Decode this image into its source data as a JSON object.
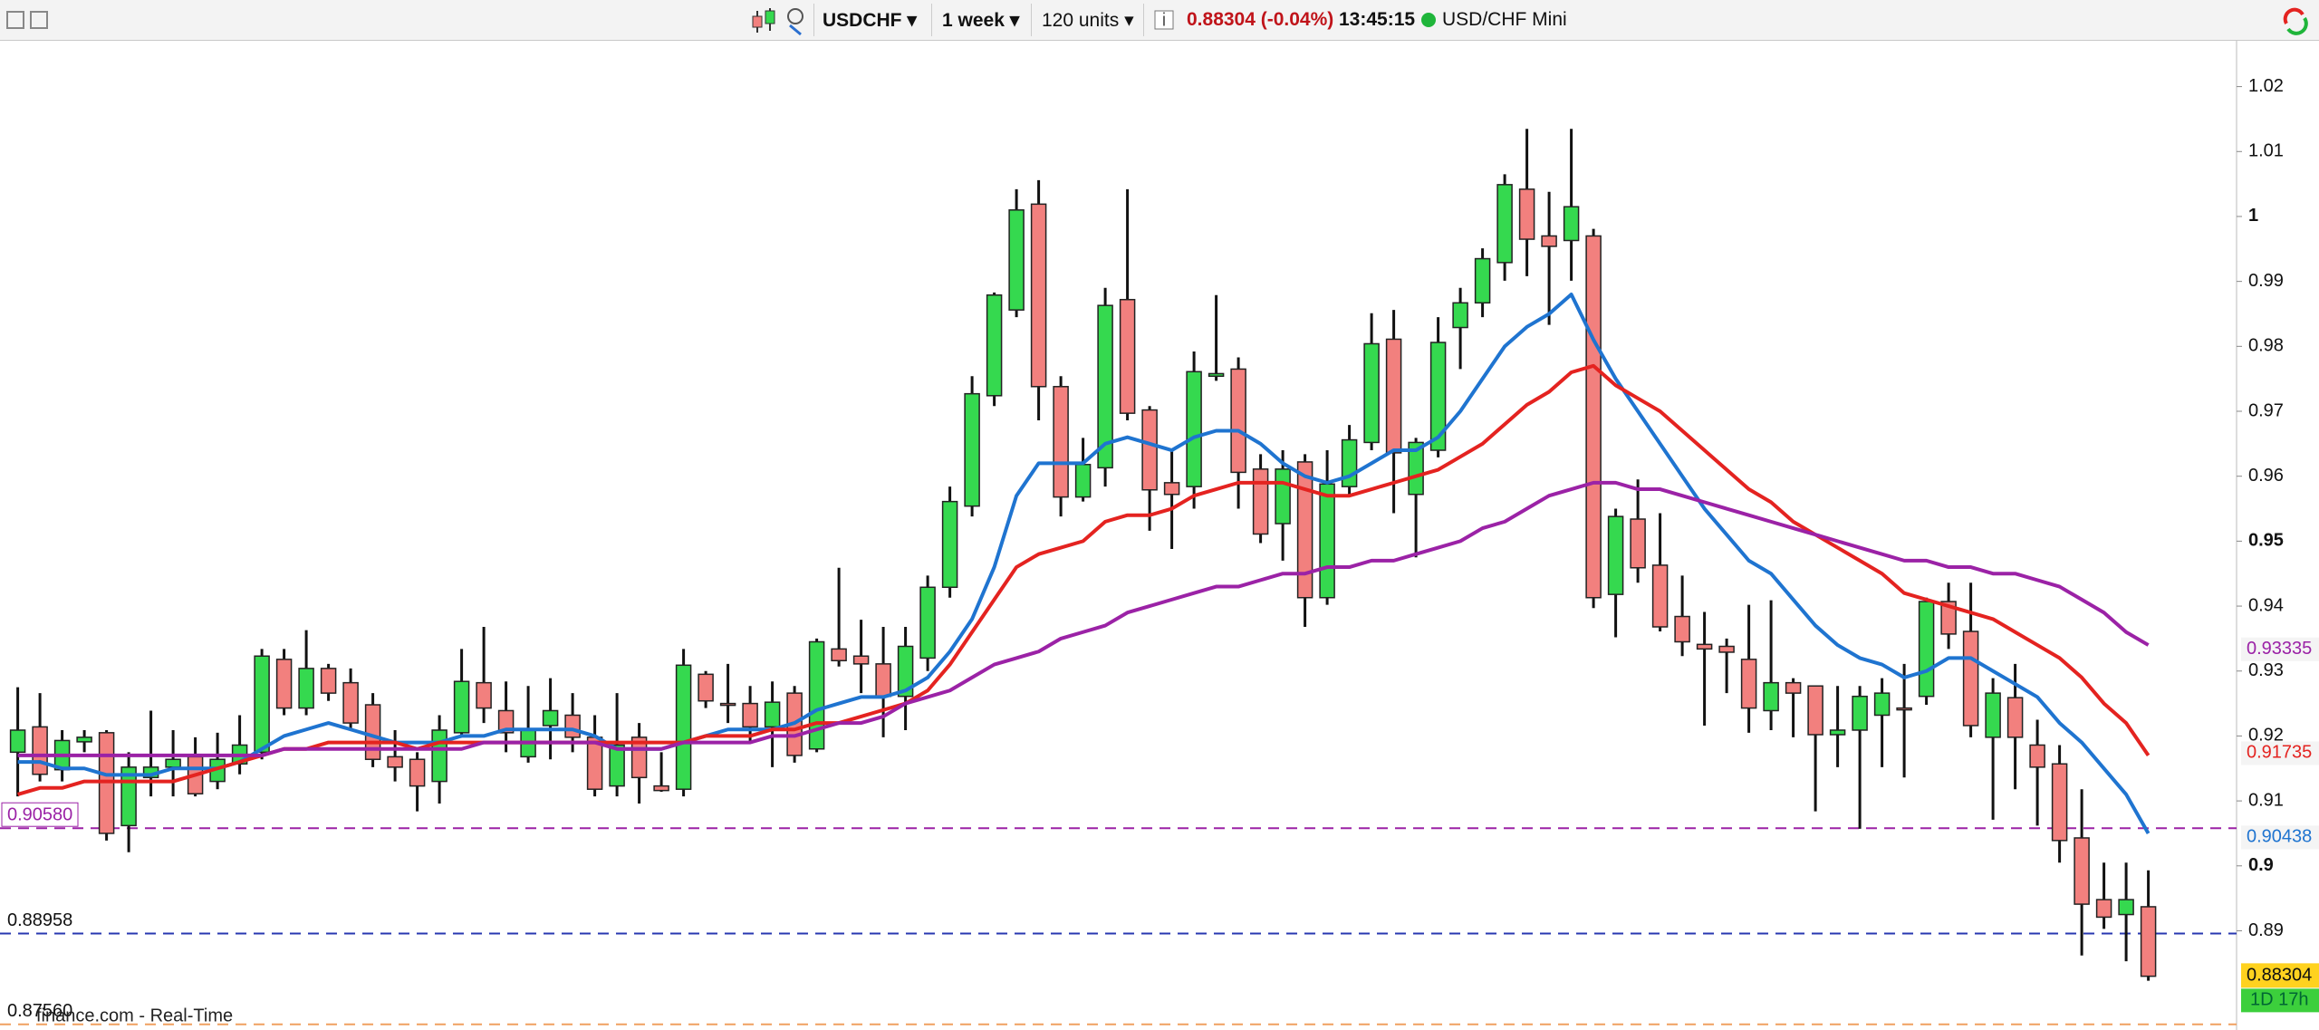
{
  "toolbar": {
    "symbol": "USDCHF",
    "period": "1 week",
    "units": "120 units",
    "quote": "0.88304 (-0.04%)",
    "time": "13:45:15",
    "name": "USD/CHF Mini"
  },
  "chart_data": {
    "type": "candlestick",
    "open": [
      0.9175,
      0.9214,
      0.9148,
      0.9191,
      0.9205,
      0.9062,
      0.9136,
      0.9152,
      0.9168,
      0.913,
      0.9157,
      0.9175,
      0.9318,
      0.9243,
      0.9304,
      0.9282,
      0.9248,
      0.9168,
      0.9164,
      0.913,
      0.9205,
      0.9282,
      0.9239,
      0.9168,
      0.9216,
      0.9232,
      0.9198,
      0.9123,
      0.9198,
      0.9123,
      0.9118,
      0.9295,
      0.925,
      0.925,
      0.9214,
      0.9266,
      0.918,
      0.9334,
      0.9323,
      0.9311,
      0.9261,
      0.932,
      0.9429,
      0.9554,
      0.9724,
      0.9856,
      1.0019,
      0.9738,
      0.9568,
      0.9613,
      0.9872,
      0.9702,
      0.959,
      0.9584,
      0.9754,
      0.9765,
      0.9611,
      0.9527,
      0.9622,
      0.9413,
      0.9584,
      0.9652,
      0.9811,
      0.9572,
      0.964,
      0.9829,
      0.9867,
      0.9929,
      1.0042,
      0.997,
      0.9963,
      0.997,
      0.9418,
      0.9534,
      0.9463,
      0.9384,
      0.9341,
      0.9338,
      0.9318,
      0.9239,
      0.9282,
      0.9277,
      0.9202,
      0.9209,
      0.9232,
      0.9243,
      0.9261,
      0.9407,
      0.9361,
      0.9198,
      0.9259,
      0.9186,
      0.9157,
      0.9043,
      0.8948,
      0.8925,
      0.8937
    ],
    "high": [
      0.9275,
      0.9266,
      0.9209,
      0.9209,
      0.9209,
      0.9175,
      0.9239,
      0.9209,
      0.9198,
      0.9205,
      0.9232,
      0.9334,
      0.9334,
      0.9363,
      0.9311,
      0.9304,
      0.9266,
      0.9209,
      0.9175,
      0.9232,
      0.9334,
      0.9368,
      0.9284,
      0.9277,
      0.9289,
      0.9266,
      0.9232,
      0.9266,
      0.922,
      0.9175,
      0.9334,
      0.93,
      0.9311,
      0.9277,
      0.9284,
      0.9277,
      0.935,
      0.9459,
      0.9379,
      0.9368,
      0.9368,
      0.9447,
      0.9584,
      0.9754,
      0.9883,
      1.0042,
      1.0056,
      0.9754,
      0.9659,
      0.989,
      1.0042,
      0.9708,
      0.964,
      0.9792,
      0.9879,
      0.9783,
      0.9634,
      0.964,
      0.9634,
      0.964,
      0.9679,
      0.9851,
      0.9856,
      0.9659,
      0.9845,
      0.989,
      0.9951,
      1.0065,
      1.0135,
      1.0038,
      1.0135,
      0.9981,
      0.955,
      0.9595,
      0.9543,
      0.9447,
      0.9391,
      0.935,
      0.9402,
      0.9409,
      0.9289,
      0.9277,
      0.9277,
      0.9277,
      0.9289,
      0.9311,
      0.9413,
      0.9436,
      0.9436,
      0.9289,
      0.9311,
      0.9225,
      0.9186,
      0.9118,
      0.9005,
      0.9005,
      0.8993
    ],
    "low": [
      0.9107,
      0.913,
      0.913,
      0.9175,
      0.9039,
      0.9021,
      0.9107,
      0.9107,
      0.9107,
      0.9118,
      0.9141,
      0.9164,
      0.9232,
      0.9232,
      0.9254,
      0.9209,
      0.9152,
      0.913,
      0.9084,
      0.9096,
      0.9198,
      0.922,
      0.9175,
      0.9159,
      0.9164,
      0.9175,
      0.9107,
      0.9107,
      0.9096,
      0.9114,
      0.9107,
      0.9243,
      0.922,
      0.9191,
      0.9152,
      0.9159,
      0.9175,
      0.9307,
      0.9266,
      0.9198,
      0.9209,
      0.93,
      0.9413,
      0.9538,
      0.9708,
      0.9845,
      0.9686,
      0.9538,
      0.9561,
      0.9584,
      0.9686,
      0.9516,
      0.9488,
      0.955,
      0.9747,
      0.955,
      0.9497,
      0.947,
      0.9368,
      0.9402,
      0.9572,
      0.964,
      0.9543,
      0.9475,
      0.9629,
      0.9765,
      0.9845,
      0.9901,
      0.9908,
      0.9833,
      0.9901,
      0.9397,
      0.9352,
      0.9436,
      0.9361,
      0.9323,
      0.9216,
      0.9266,
      0.9205,
      0.9209,
      0.9198,
      0.9084,
      0.9152,
      0.9057,
      0.9152,
      0.9136,
      0.9248,
      0.9334,
      0.9198,
      0.9071,
      0.9118,
      0.9062,
      0.9005,
      0.8862,
      0.8903,
      0.8853,
      0.8823
    ],
    "close": [
      0.9209,
      0.9141,
      0.9193,
      0.9198,
      0.905,
      0.9152,
      0.9152,
      0.9164,
      0.9111,
      0.9164,
      0.9186,
      0.9323,
      0.9243,
      0.9304,
      0.9266,
      0.922,
      0.9164,
      0.9152,
      0.9123,
      0.9209,
      0.9284,
      0.9243,
      0.9205,
      0.9209,
      0.9239,
      0.9198,
      0.9118,
      0.9186,
      0.9136,
      0.9116,
      0.9309,
      0.9254,
      0.9248,
      0.9214,
      0.9252,
      0.917,
      0.9345,
      0.9316,
      0.9311,
      0.9261,
      0.9338,
      0.9429,
      0.9561,
      0.9727,
      0.9879,
      1.001,
      0.9738,
      0.9568,
      0.9618,
      0.9863,
      0.9697,
      0.9579,
      0.9572,
      0.9761,
      0.9758,
      0.9606,
      0.9511,
      0.9611,
      0.9413,
      0.9588,
      0.9656,
      0.9804,
      0.9636,
      0.9652,
      0.9806,
      0.9867,
      0.9935,
      1.0049,
      0.9965,
      0.9954,
      1.0015,
      0.9413,
      0.9538,
      0.9459,
      0.9368,
      0.9345,
      0.9334,
      0.9329,
      0.9243,
      0.9282,
      0.9266,
      0.9202,
      0.9209,
      0.9261,
      0.9266,
      0.9241,
      0.9407,
      0.9357,
      0.9216,
      0.9266,
      0.9198,
      0.9152,
      0.9039,
      0.8941,
      0.8921,
      0.8948,
      0.883
    ],
    "up_color": "#35d94f",
    "down_color": "#f2807e",
    "series": [
      {
        "color": "#1f74d0",
        "values": [
          0.916,
          0.916,
          0.915,
          0.915,
          0.914,
          0.914,
          0.914,
          0.915,
          0.915,
          0.915,
          0.916,
          0.918,
          0.92,
          0.921,
          0.922,
          0.921,
          0.92,
          0.919,
          0.919,
          0.919,
          0.92,
          0.92,
          0.921,
          0.921,
          0.921,
          0.921,
          0.92,
          0.918,
          0.918,
          0.918,
          0.919,
          0.92,
          0.921,
          0.921,
          0.921,
          0.922,
          0.924,
          0.925,
          0.926,
          0.926,
          0.927,
          0.929,
          0.933,
          0.938,
          0.946,
          0.957,
          0.962,
          0.962,
          0.962,
          0.965,
          0.966,
          0.965,
          0.964,
          0.966,
          0.967,
          0.967,
          0.965,
          0.962,
          0.96,
          0.959,
          0.96,
          0.962,
          0.964,
          0.964,
          0.966,
          0.97,
          0.975,
          0.98,
          0.983,
          0.985,
          0.988,
          0.981,
          0.975,
          0.97,
          0.965,
          0.96,
          0.955,
          0.951,
          0.947,
          0.945,
          0.941,
          0.937,
          0.934,
          0.932,
          0.931,
          0.929,
          0.93,
          0.932,
          0.932,
          0.93,
          0.928,
          0.926,
          0.922,
          0.919,
          0.915,
          0.911,
          0.905
        ]
      },
      {
        "color": "#e42320",
        "values": [
          0.911,
          0.912,
          0.912,
          0.913,
          0.913,
          0.913,
          0.913,
          0.913,
          0.914,
          0.915,
          0.916,
          0.917,
          0.918,
          0.918,
          0.919,
          0.919,
          0.919,
          0.919,
          0.918,
          0.919,
          0.919,
          0.919,
          0.919,
          0.919,
          0.919,
          0.919,
          0.919,
          0.919,
          0.919,
          0.919,
          0.919,
          0.92,
          0.92,
          0.92,
          0.921,
          0.921,
          0.922,
          0.922,
          0.923,
          0.924,
          0.925,
          0.927,
          0.931,
          0.936,
          0.941,
          0.946,
          0.948,
          0.949,
          0.95,
          0.953,
          0.954,
          0.954,
          0.955,
          0.957,
          0.958,
          0.959,
          0.959,
          0.959,
          0.958,
          0.957,
          0.957,
          0.958,
          0.959,
          0.96,
          0.961,
          0.963,
          0.965,
          0.968,
          0.971,
          0.973,
          0.976,
          0.977,
          0.974,
          0.972,
          0.97,
          0.967,
          0.964,
          0.961,
          0.958,
          0.956,
          0.953,
          0.951,
          0.949,
          0.947,
          0.945,
          0.942,
          0.941,
          0.94,
          0.939,
          0.938,
          0.936,
          0.934,
          0.932,
          0.929,
          0.925,
          0.922,
          0.917
        ]
      },
      {
        "color": "#9b22a6",
        "values": [
          0.917,
          0.917,
          0.917,
          0.917,
          0.917,
          0.917,
          0.917,
          0.917,
          0.917,
          0.917,
          0.917,
          0.917,
          0.918,
          0.918,
          0.918,
          0.918,
          0.918,
          0.918,
          0.918,
          0.918,
          0.918,
          0.919,
          0.919,
          0.919,
          0.919,
          0.919,
          0.919,
          0.918,
          0.918,
          0.918,
          0.919,
          0.919,
          0.919,
          0.919,
          0.92,
          0.92,
          0.921,
          0.922,
          0.922,
          0.923,
          0.925,
          0.926,
          0.927,
          0.929,
          0.931,
          0.932,
          0.933,
          0.935,
          0.936,
          0.937,
          0.939,
          0.94,
          0.941,
          0.942,
          0.943,
          0.943,
          0.944,
          0.945,
          0.945,
          0.946,
          0.946,
          0.947,
          0.947,
          0.948,
          0.949,
          0.95,
          0.952,
          0.953,
          0.955,
          0.957,
          0.958,
          0.959,
          0.959,
          0.958,
          0.958,
          0.957,
          0.956,
          0.955,
          0.954,
          0.953,
          0.952,
          0.951,
          0.95,
          0.949,
          0.948,
          0.947,
          0.947,
          0.946,
          0.946,
          0.945,
          0.945,
          0.944,
          0.943,
          0.941,
          0.939,
          0.936,
          0.934
        ]
      }
    ],
    "ylim": [
      0.875,
      1.0265
    ],
    "yticks": [
      0.89,
      0.9,
      0.91,
      0.92,
      0.93,
      0.94,
      0.95,
      0.96,
      0.97,
      0.98,
      0.99,
      1,
      1.01,
      1.02
    ],
    "hlines": [
      {
        "value": 0.9058,
        "label": "0.90580",
        "color": "#9b22a6",
        "boxed": true
      },
      {
        "value": 0.88958,
        "color": "#2838b0"
      },
      {
        "value": 0.8756,
        "label": "0.87560",
        "color": "#f0a060"
      }
    ],
    "price_labels": [
      {
        "value": 0.93335,
        "color": "#9b22a6"
      },
      {
        "value": 0.91735,
        "color": "#e42320"
      },
      {
        "value": 0.90438,
        "color": "#1f74d0"
      }
    ],
    "last": {
      "value": 0.88304,
      "countdown": "1D 17h",
      "color": "#ffd21f",
      "countdown_color": "#3ccf3c"
    },
    "watermark": "finance.com - Real-Time"
  }
}
